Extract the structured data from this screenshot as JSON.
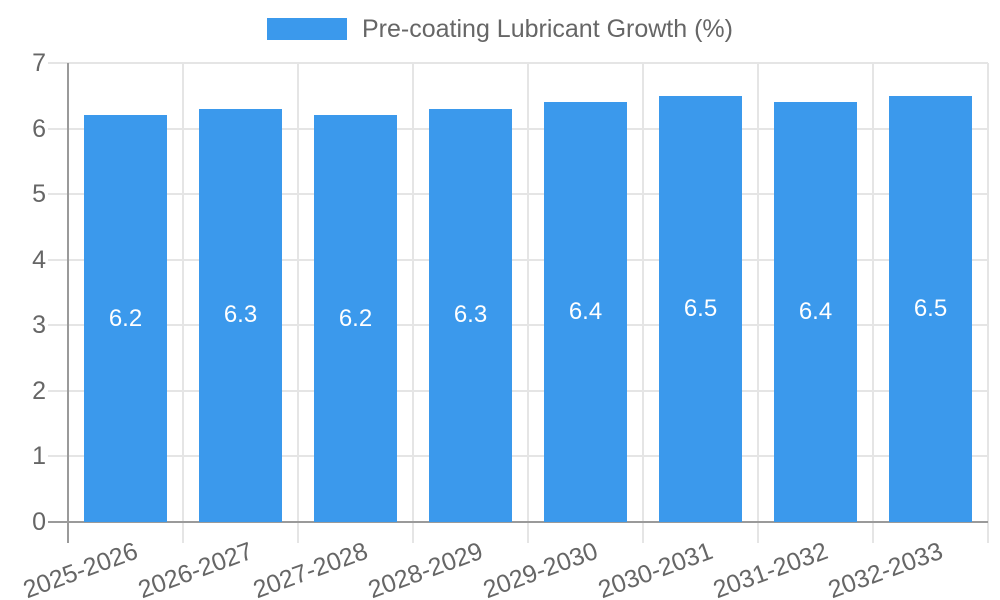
{
  "legend": {
    "items": [
      {
        "label": "Pre-coating Lubricant Growth (%)",
        "swatch_color": "#3b99ec"
      }
    ]
  },
  "chart_data": {
    "type": "bar",
    "title": "Pre-coating Lubricant Growth (%)",
    "categories": [
      "2025-2026",
      "2026-2027",
      "2027-2028",
      "2028-2029",
      "2029-2030",
      "2030-2031",
      "2031-2032",
      "2032-2033"
    ],
    "series": [
      {
        "name": "Pre-coating Lubricant Growth (%)",
        "values": [
          6.2,
          6.3,
          6.2,
          6.3,
          6.4,
          6.5,
          6.4,
          6.5
        ],
        "color": "#3b99ec"
      }
    ],
    "value_labels_shown": true,
    "value_label_decimals": 1,
    "xlabel": "",
    "ylabel": "",
    "ylim": [
      0,
      7
    ],
    "yticks": [
      0,
      1,
      2,
      3,
      4,
      5,
      6,
      7
    ],
    "grid": true,
    "legend_position": "top",
    "x_tick_rotation_deg": -20
  },
  "colors": {
    "bar": "#3b99ec",
    "axis_line": "#9a9a9a",
    "grid_line": "#e5e5e5",
    "tick_text": "#666666",
    "legend_text": "#666666",
    "bar_value_text": "#ffffff",
    "background": "#ffffff"
  }
}
